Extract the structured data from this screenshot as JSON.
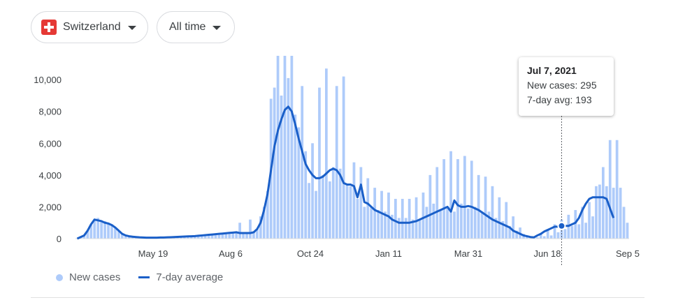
{
  "filters": {
    "country": "Switzerland",
    "country_icon": "swiss-flag-icon",
    "range": "All time",
    "caret_icon": "caret-down-icon"
  },
  "tooltip": {
    "date": "Jul 7, 2021",
    "new_cases_label": "New cases:",
    "new_cases_value": "295",
    "avg_label": "7-day avg:",
    "avg_value": "193"
  },
  "legend": {
    "bars_label": "New cases",
    "line_label": "7-day average"
  },
  "chart_data": {
    "type": "bar",
    "x_ticks": [
      "May 19",
      "Aug 6",
      "Oct 24",
      "Jan 11",
      "Mar 31",
      "Jun 18",
      "Sep 5"
    ],
    "y_ticks": [
      "0",
      "2,000",
      "4,000",
      "6,000",
      "8,000",
      "10,000"
    ],
    "ylim": [
      0,
      11500
    ],
    "grid": false,
    "legend_position": "bottom-left",
    "colors": {
      "bars": "#aecbfa",
      "line": "#1a5fc8"
    },
    "series": [
      {
        "name": "New cases",
        "type": "bar",
        "values": [
          0,
          100,
          200,
          500,
          900,
          1200,
          1300,
          1100,
          1100,
          1000,
          900,
          700,
          500,
          300,
          200,
          150,
          120,
          100,
          80,
          70,
          60,
          60,
          60,
          60,
          70,
          70,
          80,
          90,
          100,
          110,
          120,
          130,
          140,
          150,
          160,
          180,
          200,
          220,
          240,
          260,
          280,
          300,
          320,
          340,
          360,
          380,
          400,
          1000,
          350,
          420,
          1200,
          420,
          600,
          1400,
          2000,
          3000,
          8800,
          9500,
          11500,
          9000,
          11500,
          10100,
          11500,
          7800,
          7000,
          9600,
          5500,
          3500,
          6000,
          3000,
          9500,
          4000,
          10700,
          3600,
          4500,
          9600,
          4400,
          10200,
          3400,
          3300,
          4800,
          2500,
          4500,
          2000,
          3800,
          2000,
          3200,
          1800,
          3000,
          1700,
          2900,
          1500,
          2500,
          1300,
          2500,
          1300,
          2500,
          1200,
          2600,
          1200,
          2900,
          2000,
          4000,
          2200,
          4500,
          1800,
          5000,
          2000,
          5500,
          1700,
          5000,
          2200,
          5200,
          1900,
          4900,
          2000,
          4000,
          1700,
          3900,
          1700,
          3300,
          1300,
          2600,
          1100,
          2300,
          800,
          1400,
          500,
          700,
          300,
          200,
          150,
          100,
          80,
          300,
          150,
          600,
          200,
          900,
          400,
          1200,
          600,
          1500,
          800,
          1800,
          900,
          2000,
          1000,
          2300,
          1400,
          3300,
          3400,
          4500,
          3300,
          6200,
          3200,
          6200,
          3200,
          2000,
          1000
        ]
      },
      {
        "name": "7-day average",
        "type": "line",
        "values": [
          0,
          100,
          200,
          500,
          900,
          1200,
          1150,
          1100,
          1000,
          950,
          850,
          700,
          500,
          300,
          200,
          150,
          120,
          100,
          80,
          70,
          60,
          60,
          60,
          60,
          70,
          70,
          80,
          90,
          100,
          110,
          120,
          130,
          140,
          150,
          160,
          180,
          200,
          220,
          240,
          260,
          280,
          300,
          320,
          340,
          360,
          380,
          400,
          350,
          350,
          350,
          350,
          400,
          600,
          1000,
          1800,
          2800,
          4300,
          5800,
          6800,
          7500,
          8100,
          8300,
          8000,
          7200,
          6300,
          5500,
          4700,
          4300,
          4000,
          3800,
          3800,
          3900,
          4100,
          4300,
          4400,
          4300,
          4000,
          3500,
          3400,
          3400,
          3300,
          2600,
          3400,
          2300,
          2200,
          2000,
          1800,
          1700,
          1600,
          1500,
          1400,
          1200,
          1100,
          1000,
          1000,
          1000,
          1000,
          1050,
          1100,
          1200,
          1300,
          1400,
          1500,
          1600,
          1700,
          1800,
          1900,
          2000,
          1700,
          2400,
          2100,
          2000,
          2000,
          2050,
          2000,
          1900,
          1800,
          1650,
          1500,
          1350,
          1200,
          1100,
          1000,
          900,
          800,
          700,
          500,
          400,
          300,
          200,
          150,
          100,
          80,
          200,
          300,
          450,
          550,
          650,
          750,
          750,
          800,
          800,
          800,
          900,
          1000,
          1300,
          1800,
          2200,
          2500,
          2600,
          2600,
          2600,
          2600,
          2500,
          1900,
          1300
        ]
      }
    ]
  }
}
